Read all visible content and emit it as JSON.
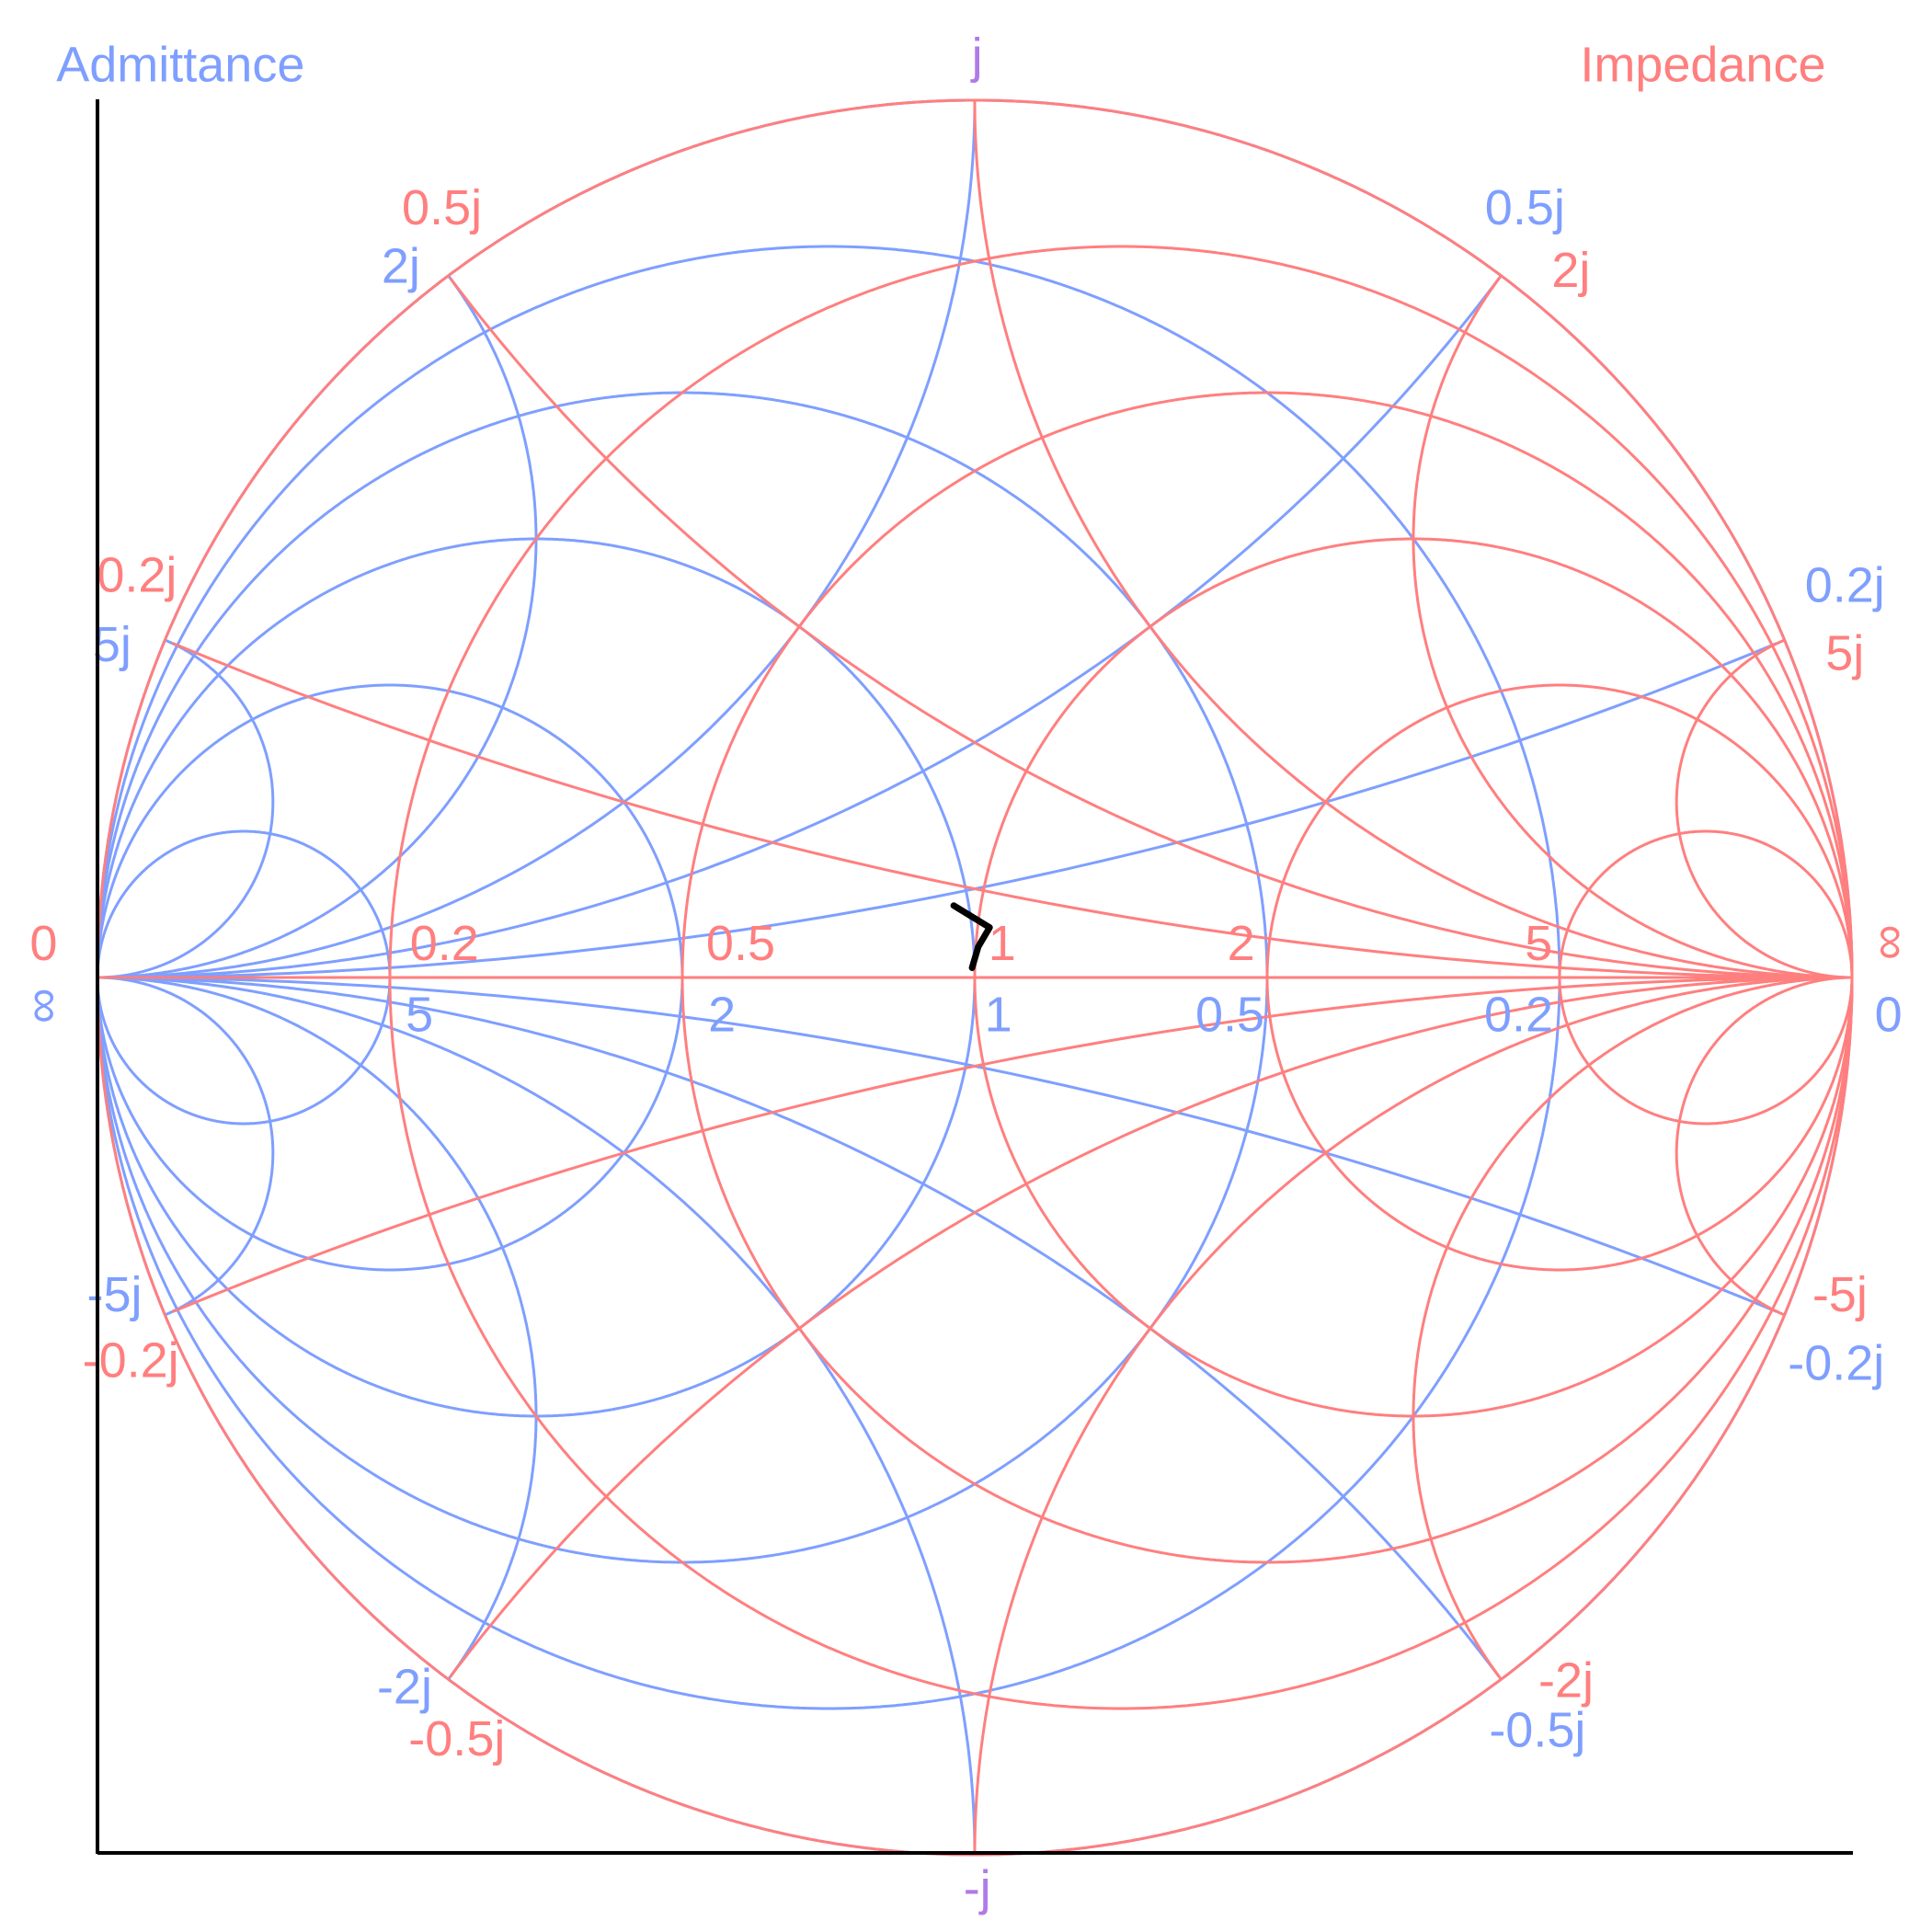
{
  "chart_data": {
    "type": "line",
    "chart_kind": "smith-chart",
    "titles": {
      "admittance": "Admittance",
      "impedance": "Impedance"
    },
    "colors": {
      "impedance": "#FF7F7F",
      "admittance": "#7F9FFF",
      "shared": "#B07AE8",
      "trace": "#000000",
      "axes": "#000000"
    },
    "resistance_values": [
      0,
      0.2,
      0.5,
      1,
      2,
      5
    ],
    "reactance_values": [
      0.2,
      0.5,
      1,
      2,
      5
    ],
    "impedance_axis_labels": [
      "0.2",
      "0.5",
      "1",
      "2",
      "5"
    ],
    "admittance_axis_labels": [
      "5",
      "2",
      "1",
      "0.5",
      "0.2"
    ],
    "impedance_rim_labels": [
      "0.5j",
      "2j",
      "0.2j",
      "5j",
      "-0.2j",
      "-5j",
      "-0.5j",
      "-2j"
    ],
    "admittance_rim_labels": [
      "0.5j",
      "2j",
      "0.2j",
      "5j",
      "-0.2j",
      "-5j",
      "-0.5j",
      "-2j"
    ],
    "impedance_end_labels": [
      "0",
      "∞"
    ],
    "admittance_end_labels": [
      "∞",
      "0"
    ],
    "shared_labels": [
      "j",
      "-j"
    ],
    "trace": {
      "units": "reflection coefficient (real, imag)",
      "points": [
        [
          -0.024,
          0.082
        ],
        [
          0.017,
          0.057
        ],
        [
          0.004,
          0.035
        ],
        [
          -0.003,
          0.011
        ]
      ]
    }
  }
}
